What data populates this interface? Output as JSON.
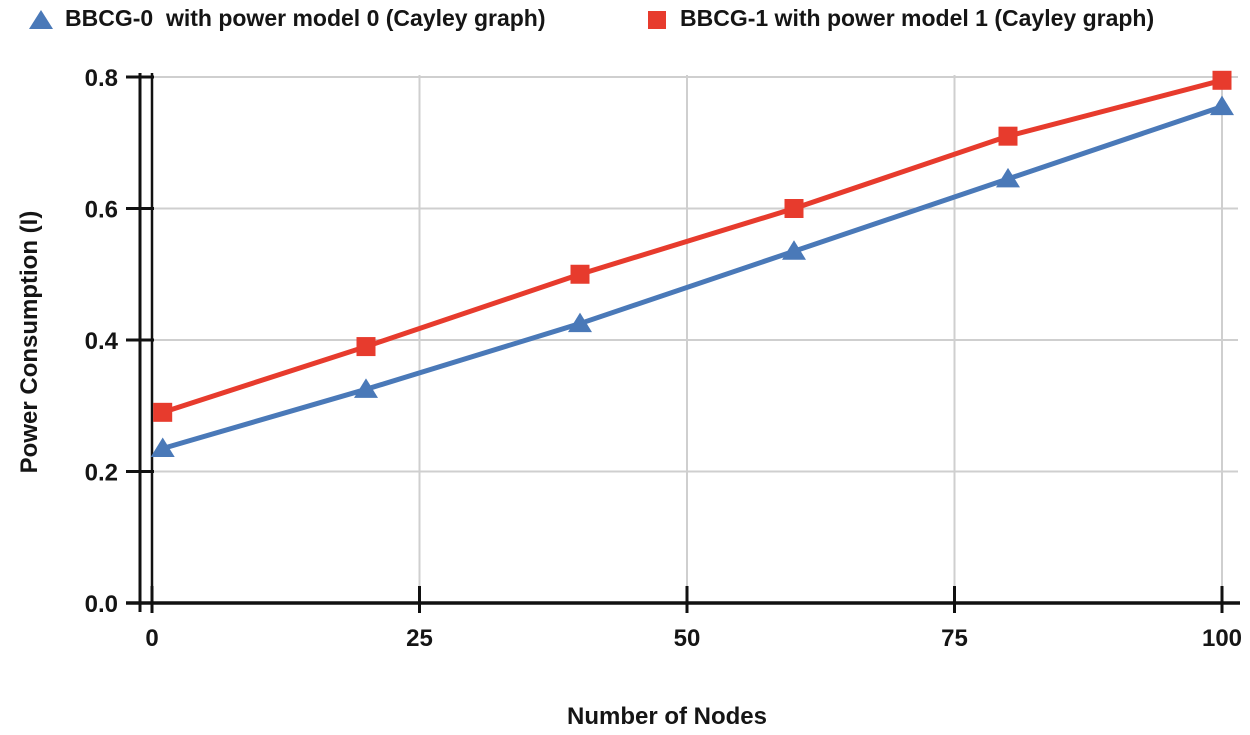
{
  "legend": {
    "items": [
      {
        "label": "BBCG-0  with power model 0 (Cayley graph)",
        "marker": "triangle",
        "color": "#4a79b8"
      },
      {
        "label": "BBCG-1 with power model 1 (Cayley graph)",
        "marker": "square",
        "color": "#e73b2d"
      }
    ]
  },
  "chart_data": {
    "type": "line",
    "title": "",
    "xlabel": "Number of Nodes",
    "ylabel": "Power Consumption (I)",
    "x": [
      1,
      20,
      40,
      60,
      80,
      100
    ],
    "series": [
      {
        "name": "BBCG-0  with power model 0 (Cayley graph)",
        "marker": "triangle",
        "color": "#4a79b8",
        "values": [
          0.235,
          0.325,
          0.425,
          0.535,
          0.645,
          0.755
        ]
      },
      {
        "name": "BBCG-1 with power model 1 (Cayley graph)",
        "marker": "square",
        "color": "#e73b2d",
        "values": [
          0.29,
          0.39,
          0.5,
          0.6,
          0.71,
          0.795
        ]
      }
    ],
    "xlim": [
      0,
      100
    ],
    "ylim": [
      0,
      0.8
    ],
    "xticks": [
      0,
      25,
      50,
      75,
      100
    ],
    "xtick_labels": [
      "0",
      "25",
      "50",
      "75",
      "100"
    ],
    "yticks": [
      0,
      0.2,
      0.4,
      0.6,
      0.8
    ],
    "ytick_labels": [
      "0.0",
      "0.2",
      "0.4",
      "0.6",
      "0.8"
    ],
    "grid": true,
    "legend_position": "top",
    "colors": {
      "grid": "#cfcfcf",
      "axis": "#111111",
      "text": "#151515"
    }
  }
}
